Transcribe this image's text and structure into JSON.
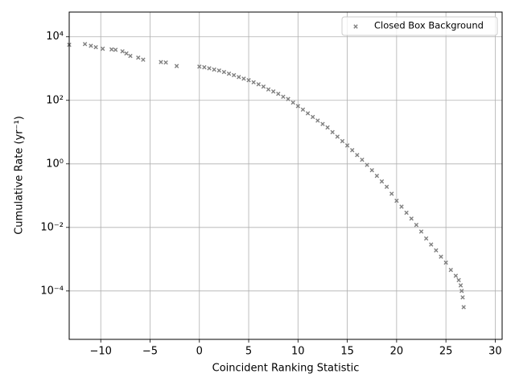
{
  "chart_data": {
    "type": "scatter",
    "xlabel": "Coincident Ranking Statistic",
    "ylabel": "Cumulative Rate (yr⁻¹)",
    "log_y": true,
    "grid": true,
    "legend_loc": "upper right",
    "xlim": [
      -13.2,
      30.7
    ],
    "ylim": [
      3e-06,
      60000
    ],
    "xticks": [
      {
        "value": -10,
        "label": "−10"
      },
      {
        "value": -5,
        "label": "−5"
      },
      0,
      5,
      10,
      15,
      20,
      25,
      30
    ],
    "yticks": [
      {
        "value": 0.0001,
        "label": "10⁻⁴"
      },
      {
        "value": 0.01,
        "label": "10⁻²"
      },
      {
        "value": 1,
        "label": "10⁰"
      },
      {
        "value": 100,
        "label": "10²"
      },
      {
        "value": 10000,
        "label": "10⁴"
      }
    ],
    "series": [
      {
        "name": "Closed Box Background",
        "color": "#808080",
        "marker": "x",
        "x": [
          -13.2,
          -11.6,
          -11.0,
          -10.5,
          -9.8,
          -8.9,
          -8.5,
          -7.8,
          -7.4,
          -7.0,
          -6.2,
          -5.7,
          -3.9,
          -3.4,
          -2.3,
          0,
          0.5,
          1,
          1.5,
          2,
          2.5,
          3,
          3.5,
          4,
          4.5,
          5,
          5.5,
          6,
          6.5,
          7,
          7.5,
          8,
          8.5,
          9,
          9.5,
          10,
          10.5,
          11,
          11.5,
          12,
          12.5,
          13,
          13.5,
          14,
          14.5,
          15,
          15.5,
          16,
          16.5,
          17,
          17.5,
          18,
          18.5,
          19,
          19.5,
          20,
          20.5,
          21,
          21.5,
          22,
          22.5,
          23,
          23.5,
          24,
          24.5,
          25,
          25.5,
          26,
          26.3,
          26.5,
          26.6,
          26.7,
          26.8
        ],
        "values": [
          5600,
          5900,
          5200,
          4700,
          4200,
          4000,
          3900,
          3500,
          3000,
          2500,
          2200,
          1900,
          1600,
          1550,
          1200,
          1150,
          1100,
          1020,
          930,
          870,
          780,
          690,
          620,
          540,
          480,
          430,
          370,
          320,
          270,
          220,
          190,
          160,
          130,
          110,
          85,
          66,
          51,
          39,
          30,
          23,
          18,
          14,
          10,
          7.2,
          5.2,
          3.8,
          2.7,
          1.9,
          1.35,
          0.93,
          0.63,
          0.42,
          0.28,
          0.19,
          0.115,
          0.069,
          0.045,
          0.029,
          0.019,
          0.012,
          0.0074,
          0.0045,
          0.0029,
          0.0019,
          0.0012,
          0.00078,
          0.00046,
          0.0003,
          0.00022,
          0.00015,
          0.0001,
          6.3e-05,
          3.1e-05
        ]
      }
    ]
  }
}
